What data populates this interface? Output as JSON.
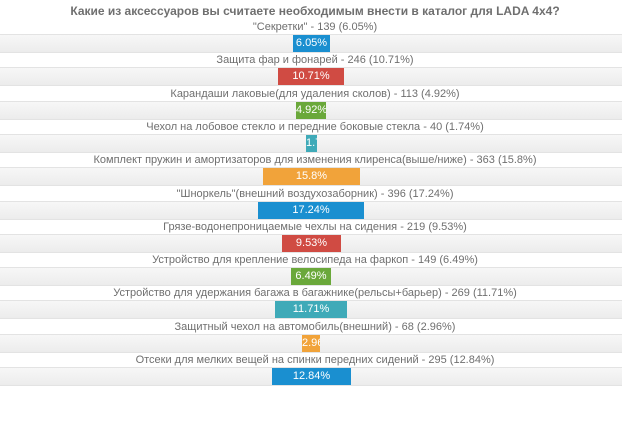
{
  "poll": {
    "title": "Какие из аксессуаров вы считаете необходимым внести в каталог для LADA 4x4?"
  },
  "colors": {
    "blue": "#1a8fd0",
    "red": "#d04b43",
    "green": "#6aa83a",
    "teal": "#3faab8",
    "orange": "#f1a33a"
  },
  "chart_data": {
    "type": "bar",
    "orientation": "horizontal",
    "title": "Какие из аксессуаров вы считаете необходимым внести в каталог для LADA 4x4?",
    "categories": [
      "\"Секретки\" - 139 (6.05%)",
      "Защита фар и фонарей - 246 (10.71%)",
      "Карандаши лаковые(для удаления сколов) - 113 (4.92%)",
      "Чехол на лобовое стекло и передние боковые стекла - 40 (1.74%)",
      "Комплект пружин и амортизаторов для изменения клиренса(выше/ниже) - 363 (15.8%)",
      "\"Шноркель\"(внешний воздухозаборник) - 396 (17.24%)",
      "Грязе-водонепроницаемые чехлы на сидения - 219 (9.53%)",
      "Устройство для крепление велосипеда на фаркоп - 149 (6.49%)",
      "Устройство для удержания багажа в багажнике(рельсы+барьер) - 269 (11.71%)",
      "Защитный чехол на автомобиль(внешний) - 68 (2.96%)",
      "Отсеки для мелких вещей на спинки передних сидений - 295 (12.84%)"
    ],
    "votes": [
      139,
      246,
      113,
      40,
      363,
      396,
      219,
      149,
      269,
      68,
      295
    ],
    "values": [
      6.05,
      10.71,
      4.92,
      1.74,
      15.8,
      17.24,
      9.53,
      6.49,
      11.71,
      2.96,
      12.84
    ],
    "bar_labels": [
      "6.05%",
      "10.71%",
      "4.92%",
      "1.74%",
      "15.8%",
      "17.24%",
      "9.53%",
      "6.49%",
      "11.71%",
      "2.96%",
      "12.84%"
    ],
    "bar_colors": [
      "blue",
      "red",
      "green",
      "teal",
      "orange",
      "blue",
      "red",
      "green",
      "teal",
      "orange",
      "blue"
    ],
    "xlim": [
      0,
      17.24
    ]
  }
}
